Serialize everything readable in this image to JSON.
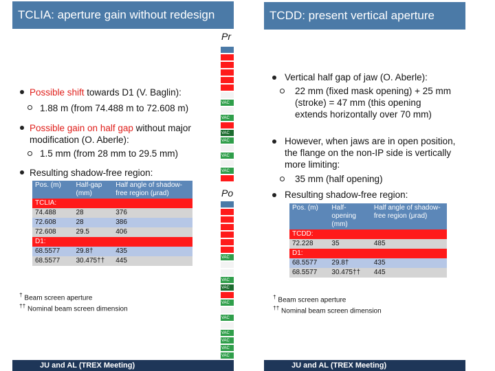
{
  "left": {
    "title": "TCLIA: aperture gain without redesign",
    "bullets": [
      {
        "lead": "Possible shift",
        "rest": " towards D1 (V. Baglin):",
        "sub": "1.88 m (from 74.488 m to 72.608 m)"
      },
      {
        "lead": "Possible gain on half gap",
        "rest": " without major modification (O. Aberle):",
        "sub": "1.5 mm (from 28 mm to 29.5 mm)"
      },
      {
        "text": "Resulting shadow-free region:"
      }
    ],
    "table": {
      "header": [
        "Pos. (m)",
        "Half-gap (mm)",
        "Half angle of shadow-free region (μrad)"
      ],
      "rows": [
        [
          "TCLIA:"
        ],
        [
          "74.488",
          "28",
          "376"
        ],
        [
          "72.608",
          "28",
          "386"
        ],
        [
          "72.608",
          "29.5",
          "406"
        ],
        [
          "D1:"
        ],
        [
          "68.5577",
          "29.8†",
          "435"
        ],
        [
          "68.5577",
          "30.475††",
          "445"
        ]
      ]
    },
    "footnotes": [
      {
        "mark": "†",
        "text": "Beam screen aperture"
      },
      {
        "mark": "††",
        "text": "Nominal beam screen dimension"
      }
    ],
    "footer": "JU and AL (TREX Meeting)",
    "strip": {
      "top_label": "Pr",
      "bottom_label": "Po",
      "cell_label": "VAC"
    }
  },
  "right": {
    "title": "TCDD: present vertical aperture",
    "bullets": [
      {
        "text": "Vertical half gap of jaw (O. Aberle):",
        "sub": "22 mm (fixed mask opening) + 25 mm (stroke) = 47 mm (this opening extends horizontally over 70 mm)"
      },
      {
        "text": "However, when jaws are in open position, the flange on the non-IP side is vertically more limiting:",
        "sub": "35 mm (half opening)"
      },
      {
        "text": "Resulting shadow-free region:"
      }
    ],
    "table": {
      "header": [
        "Pos. (m)",
        "Half-opening (mm)",
        "Half angle of shadow-free region (μrad)"
      ],
      "rows": [
        [
          "TCDD:"
        ],
        [
          "72.228",
          "35",
          "485"
        ],
        [
          "D1:"
        ],
        [
          "68.5577",
          "29.8†",
          "435"
        ],
        [
          "68.5577",
          "30.475††",
          "445"
        ]
      ]
    },
    "footnotes": [
      {
        "mark": "†",
        "text": "Beam screen aperture"
      },
      {
        "mark": "††",
        "text": "Nominal beam screen dimension"
      }
    ],
    "footer": "JU and AL (TREX Meeting)"
  }
}
